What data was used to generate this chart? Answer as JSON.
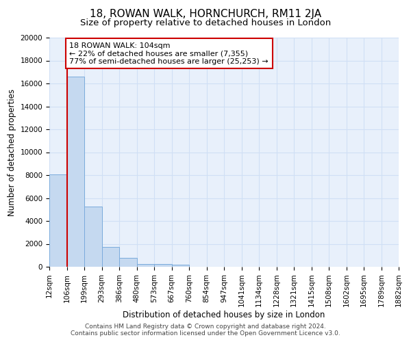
{
  "title": "18, ROWAN WALK, HORNCHURCH, RM11 2JA",
  "subtitle": "Size of property relative to detached houses in London",
  "xlabel": "Distribution of detached houses by size in London",
  "ylabel": "Number of detached properties",
  "footer1": "Contains HM Land Registry data © Crown copyright and database right 2024.",
  "footer2": "Contains public sector information licensed under the Open Government Licence v3.0.",
  "annotation_line1": "18 ROWAN WALK: 104sqm",
  "annotation_line2": "← 22% of detached houses are smaller (7,355)",
  "annotation_line3": "77% of semi-detached houses are larger (25,253) →",
  "bin_labels": [
    "12sqm",
    "106sqm",
    "199sqm",
    "293sqm",
    "386sqm",
    "480sqm",
    "573sqm",
    "667sqm",
    "760sqm",
    "854sqm",
    "947sqm",
    "1041sqm",
    "1134sqm",
    "1228sqm",
    "1321sqm",
    "1415sqm",
    "1508sqm",
    "1602sqm",
    "1695sqm",
    "1789sqm",
    "1882sqm"
  ],
  "bar_values": [
    8050,
    16600,
    5250,
    1750,
    750,
    250,
    250,
    150,
    0,
    0,
    0,
    0,
    0,
    0,
    0,
    0,
    0,
    0,
    0,
    0
  ],
  "bar_color": "#c5d9f0",
  "bar_edge_color": "#7aabdc",
  "redline_x": 1,
  "ylim": [
    0,
    20000
  ],
  "yticks": [
    0,
    2000,
    4000,
    6000,
    8000,
    10000,
    12000,
    14000,
    16000,
    18000,
    20000
  ],
  "background_color": "#e8f0fb",
  "grid_color": "#d0dff5",
  "redline_color": "#cc0000",
  "annotation_box_color": "#ffffff",
  "annotation_box_edge": "#cc0000",
  "fig_bg": "#ffffff",
  "title_fontsize": 11,
  "subtitle_fontsize": 9.5,
  "axis_label_fontsize": 8.5,
  "tick_fontsize": 7.5,
  "annotation_fontsize": 8,
  "footer_fontsize": 6.5
}
